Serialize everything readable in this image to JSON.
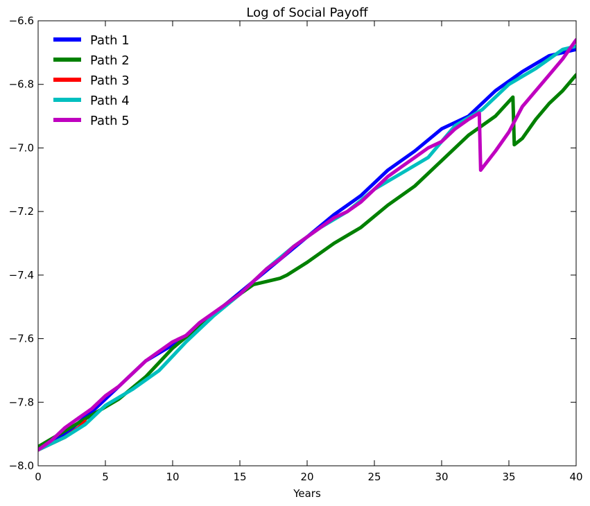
{
  "chart_data": {
    "type": "line",
    "title": "Log of Social Payoff",
    "xlabel": "Years",
    "ylabel": "",
    "xlim": [
      0,
      40
    ],
    "ylim": [
      -8.0,
      -6.6
    ],
    "x_ticks": [
      0,
      5,
      10,
      15,
      20,
      25,
      30,
      35,
      40
    ],
    "y_ticks": [
      -8.0,
      -7.8,
      -7.6,
      -7.4,
      -7.2,
      -7.0,
      -6.8,
      -6.6
    ],
    "x_tick_labels": [
      "0",
      "5",
      "10",
      "15",
      "20",
      "25",
      "30",
      "35",
      "40"
    ],
    "y_tick_labels": [
      "−8.0",
      "−7.8",
      "−7.6",
      "−7.4",
      "−7.2",
      "−7.0",
      "−6.8",
      "−6.6"
    ],
    "grid": false,
    "legend_position": "top-left",
    "series": [
      {
        "name": "Path 1",
        "color": "#0000ff",
        "points": [
          [
            0,
            -7.95
          ],
          [
            2,
            -7.9
          ],
          [
            4,
            -7.83
          ],
          [
            6,
            -7.75
          ],
          [
            8,
            -7.67
          ],
          [
            10,
            -7.62
          ],
          [
            12,
            -7.56
          ],
          [
            14,
            -7.49
          ],
          [
            16,
            -7.42
          ],
          [
            18,
            -7.35
          ],
          [
            20,
            -7.28
          ],
          [
            22,
            -7.21
          ],
          [
            24,
            -7.15
          ],
          [
            26,
            -7.07
          ],
          [
            28,
            -7.01
          ],
          [
            30,
            -6.94
          ],
          [
            32,
            -6.9
          ],
          [
            34,
            -6.82
          ],
          [
            36,
            -6.76
          ],
          [
            38,
            -6.71
          ],
          [
            40,
            -6.69
          ]
        ]
      },
      {
        "name": "Path 2",
        "color": "#008000",
        "points": [
          [
            0,
            -7.94
          ],
          [
            2,
            -7.89
          ],
          [
            4,
            -7.84
          ],
          [
            6,
            -7.79
          ],
          [
            8,
            -7.72
          ],
          [
            10,
            -7.63
          ],
          [
            12,
            -7.56
          ],
          [
            14,
            -7.49
          ],
          [
            16,
            -7.43
          ],
          [
            18,
            -7.41
          ],
          [
            18.5,
            -7.4
          ],
          [
            20,
            -7.36
          ],
          [
            22,
            -7.3
          ],
          [
            24,
            -7.25
          ],
          [
            26,
            -7.18
          ],
          [
            28,
            -7.12
          ],
          [
            30,
            -7.04
          ],
          [
            32,
            -6.96
          ],
          [
            34,
            -6.9
          ],
          [
            35.3,
            -6.84
          ],
          [
            35.4,
            -6.99
          ],
          [
            36,
            -6.97
          ],
          [
            37,
            -6.91
          ],
          [
            38,
            -6.86
          ],
          [
            39,
            -6.82
          ],
          [
            40,
            -6.77
          ]
        ]
      },
      {
        "name": "Path 3",
        "color": "#ff0000",
        "points": [
          [
            0,
            -7.95
          ],
          [
            1,
            -7.93
          ],
          [
            2,
            -7.91
          ],
          [
            3,
            -7.88
          ],
          [
            3.5,
            -7.86
          ]
        ]
      },
      {
        "name": "Path 4",
        "color": "#00bfbf",
        "points": [
          [
            0,
            -7.95
          ],
          [
            2,
            -7.91
          ],
          [
            3.5,
            -7.87
          ],
          [
            5,
            -7.81
          ],
          [
            7,
            -7.76
          ],
          [
            9,
            -7.7
          ],
          [
            11,
            -7.61
          ],
          [
            13,
            -7.53
          ],
          [
            15,
            -7.46
          ],
          [
            17,
            -7.38
          ],
          [
            19,
            -7.31
          ],
          [
            21,
            -7.25
          ],
          [
            23,
            -7.2
          ],
          [
            25,
            -7.13
          ],
          [
            27,
            -7.08
          ],
          [
            29,
            -7.03
          ],
          [
            31,
            -6.93
          ],
          [
            33,
            -6.88
          ],
          [
            35,
            -6.8
          ],
          [
            37,
            -6.75
          ],
          [
            39,
            -6.69
          ],
          [
            40,
            -6.68
          ]
        ]
      },
      {
        "name": "Path 5",
        "color": "#bf00bf",
        "points": [
          [
            0,
            -7.95
          ],
          [
            1,
            -7.92
          ],
          [
            2,
            -7.88
          ],
          [
            3,
            -7.85
          ],
          [
            4,
            -7.82
          ],
          [
            5,
            -7.78
          ],
          [
            6,
            -7.75
          ],
          [
            7,
            -7.71
          ],
          [
            8,
            -7.67
          ],
          [
            9,
            -7.64
          ],
          [
            10,
            -7.61
          ],
          [
            11,
            -7.59
          ],
          [
            12,
            -7.55
          ],
          [
            13,
            -7.52
          ],
          [
            14,
            -7.49
          ],
          [
            15,
            -7.46
          ],
          [
            16,
            -7.42
          ],
          [
            17,
            -7.38
          ],
          [
            18,
            -7.35
          ],
          [
            19,
            -7.31
          ],
          [
            20,
            -7.28
          ],
          [
            21,
            -7.25
          ],
          [
            22,
            -7.22
          ],
          [
            23,
            -7.2
          ],
          [
            24,
            -7.17
          ],
          [
            25,
            -7.13
          ],
          [
            26,
            -7.09
          ],
          [
            27,
            -7.06
          ],
          [
            28,
            -7.03
          ],
          [
            29,
            -7.0
          ],
          [
            30,
            -6.98
          ],
          [
            31,
            -6.94
          ],
          [
            32,
            -6.91
          ],
          [
            32.8,
            -6.89
          ],
          [
            32.9,
            -7.07
          ],
          [
            34,
            -7.01
          ],
          [
            35,
            -6.95
          ],
          [
            36,
            -6.87
          ],
          [
            37,
            -6.82
          ],
          [
            38,
            -6.77
          ],
          [
            39,
            -6.72
          ],
          [
            40,
            -6.66
          ]
        ]
      }
    ]
  }
}
